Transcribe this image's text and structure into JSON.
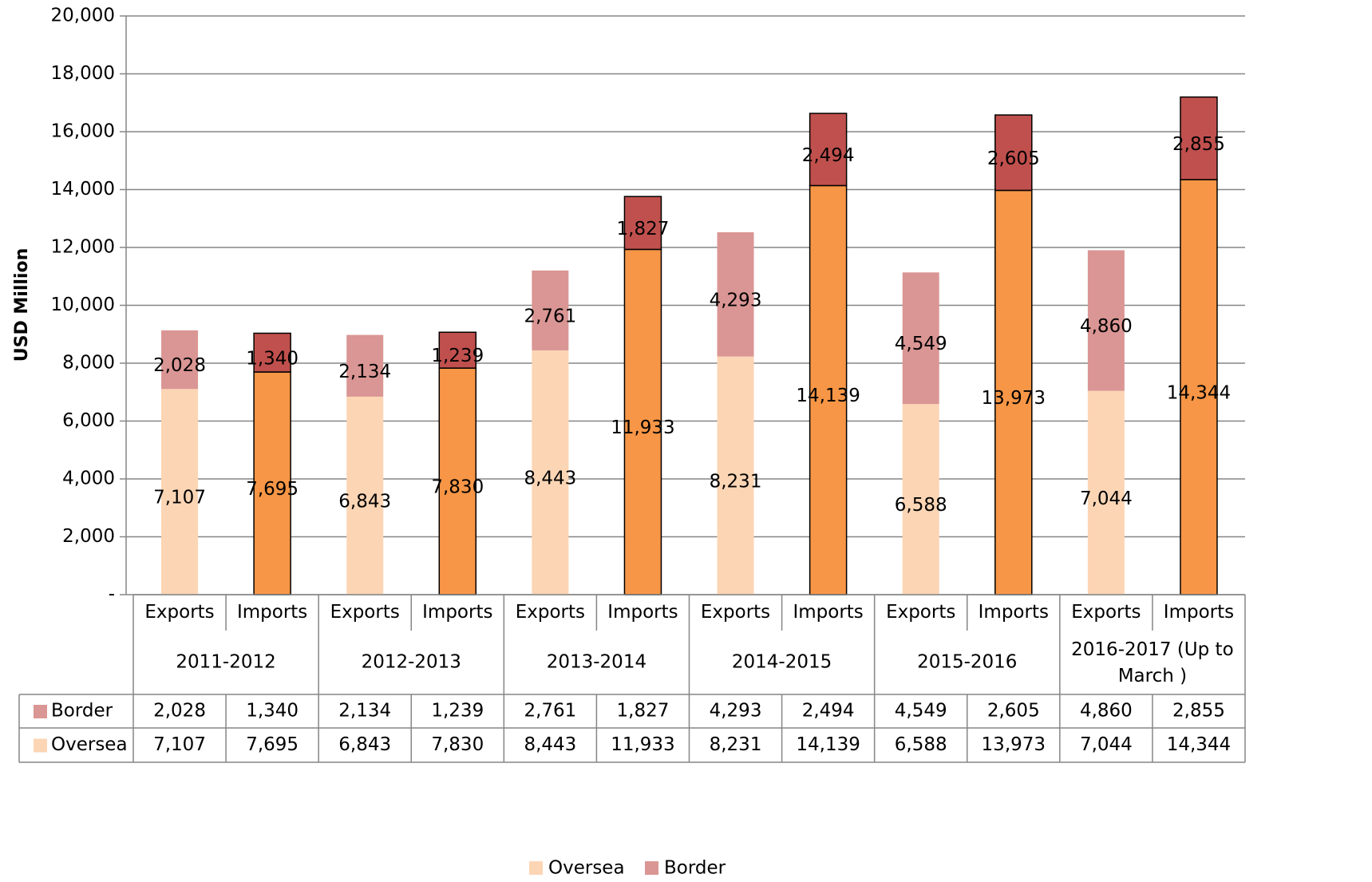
{
  "chart_data": {
    "type": "stacked_bar",
    "y_label": "USD Million",
    "categories": [
      "Exports",
      "Imports",
      "Exports",
      "Imports",
      "Exports",
      "Imports",
      "Exports",
      "Imports",
      "Exports",
      "Imports",
      "Exports",
      "Imports"
    ],
    "groups": [
      "2011-2012",
      "2012-2013",
      "2013-2014",
      "2014-2015",
      "2015-2016",
      "2016-2017 (Up to March )"
    ],
    "series": [
      {
        "name": "Oversea",
        "color": "#fcd5b4",
        "colors": [
          "#fcd5b4",
          "#f79646",
          "#fcd5b4",
          "#f79646",
          "#fcd5b4",
          "#f79646",
          "#fcd5b4",
          "#f79646",
          "#fcd5b4",
          "#f79646",
          "#fcd5b4",
          "#f79646"
        ],
        "values": [
          7107,
          7695,
          6843,
          7830,
          8443,
          11933,
          8231,
          14139,
          6588,
          13973,
          7044,
          14344
        ],
        "value_labels": [
          "7,107",
          "7,695",
          "6,843",
          "7,830",
          "8,443",
          "11,933",
          "8,231",
          "14,139",
          "6,588",
          "13,973",
          "7,044",
          "14,344"
        ]
      },
      {
        "name": "Border",
        "color": "#da9694",
        "colors": [
          "#da9694",
          "#c0504d",
          "#da9694",
          "#c0504d",
          "#da9694",
          "#c0504d",
          "#da9694",
          "#c0504d",
          "#da9694",
          "#c0504d",
          "#da9694",
          "#c0504d"
        ],
        "values": [
          2028,
          1340,
          2134,
          1239,
          2761,
          1827,
          4293,
          2494,
          4549,
          2605,
          4860,
          2855
        ],
        "value_labels": [
          "2,028",
          "1,340",
          "2,134",
          "1,239",
          "2,761",
          "1,827",
          "4,293",
          "2,494",
          "4,549",
          "2,605",
          "4,860",
          "2,855"
        ]
      }
    ],
    "ylim": [
      0,
      20000
    ],
    "yticks": [
      {
        "value": 0,
        "label": "-"
      },
      {
        "value": 2000,
        "label": "2,000"
      },
      {
        "value": 4000,
        "label": "4,000"
      },
      {
        "value": 6000,
        "label": "6,000"
      },
      {
        "value": 8000,
        "label": "8,000"
      },
      {
        "value": 10000,
        "label": "10,000"
      },
      {
        "value": 12000,
        "label": "12,000"
      },
      {
        "value": 14000,
        "label": "14,000"
      },
      {
        "value": 16000,
        "label": "16,000"
      },
      {
        "value": 18000,
        "label": "18,000"
      },
      {
        "value": 20000,
        "label": "20,000"
      }
    ],
    "grid": true,
    "legend": "bottom"
  }
}
